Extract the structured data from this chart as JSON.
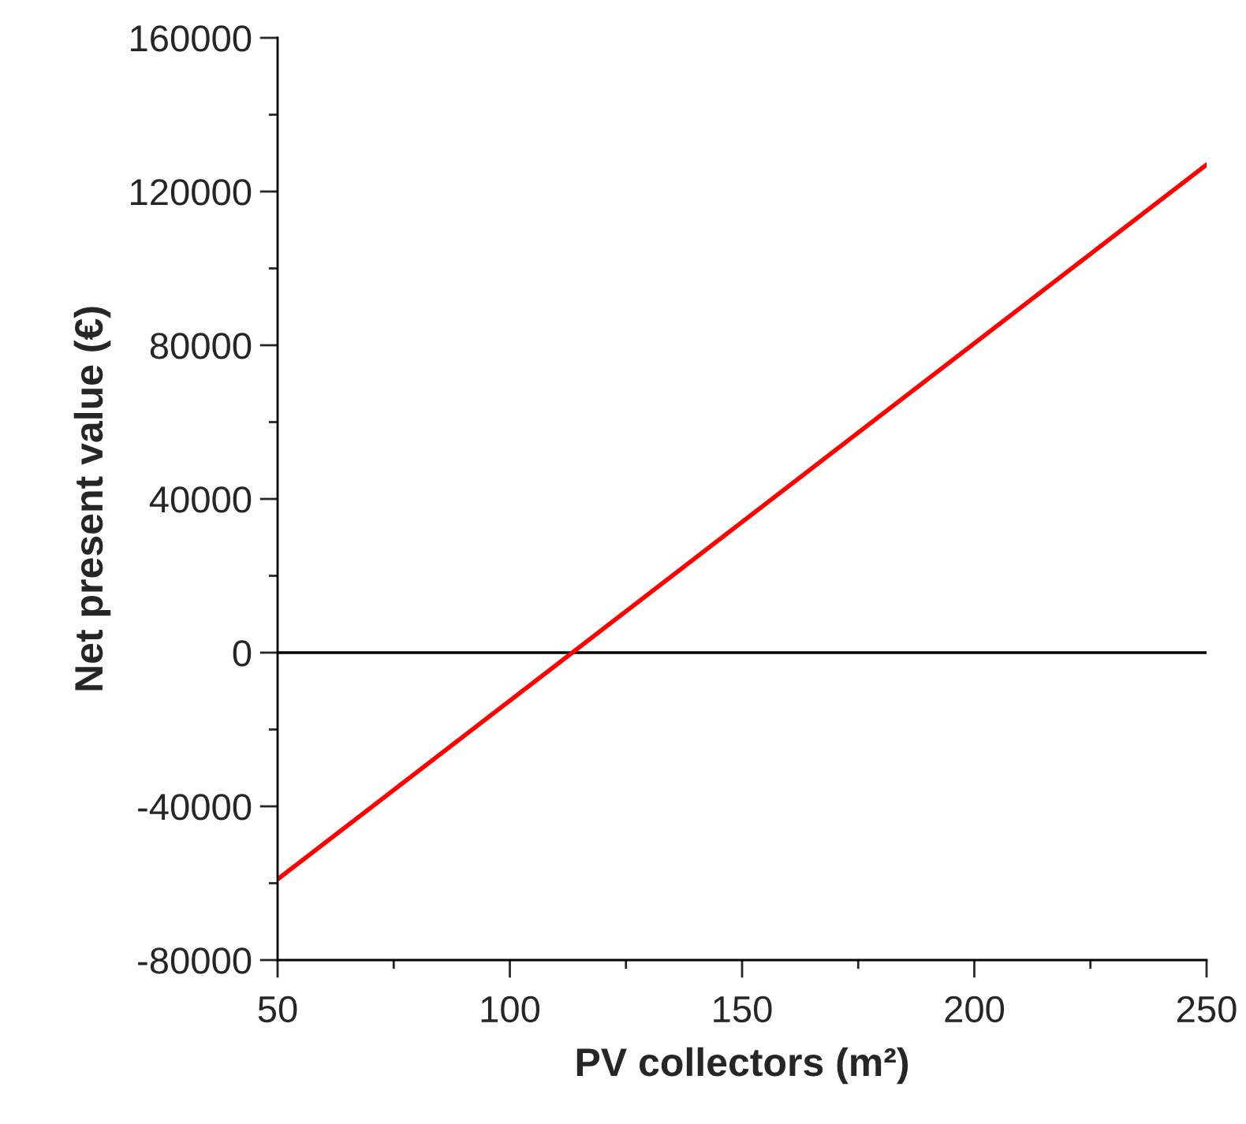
{
  "chart_data": {
    "type": "line",
    "xlabel": "PV collectors (m²)",
    "ylabel": "Net present value (€)",
    "series": [
      {
        "color": "#ff0000",
        "x": [
          50,
          250
        ],
        "values": [
          -59000,
          127000
        ]
      }
    ],
    "xlim": [
      50,
      250
    ],
    "ylim": [
      -80000,
      160000
    ],
    "xticks": [
      50,
      {
        "value": 75,
        "label": null
      },
      100,
      {
        "value": 125,
        "label": null
      },
      150,
      {
        "value": 175,
        "label": null
      },
      200,
      {
        "value": 225,
        "label": null
      },
      250
    ],
    "yticks": [
      -80000,
      {
        "value": -60000,
        "label": null
      },
      -40000,
      {
        "value": -20000,
        "label": null
      },
      0,
      {
        "value": 20000,
        "label": null
      },
      40000,
      {
        "value": 60000,
        "label": null
      },
      80000,
      {
        "value": 100000,
        "label": null
      },
      120000,
      {
        "value": 140000,
        "label": null
      },
      160000
    ],
    "ref_lines": [
      {
        "axis": "y",
        "value": 0,
        "color": "#000000"
      }
    ],
    "grid": false,
    "legend": false,
    "marker": "none",
    "line_style": "solid"
  }
}
